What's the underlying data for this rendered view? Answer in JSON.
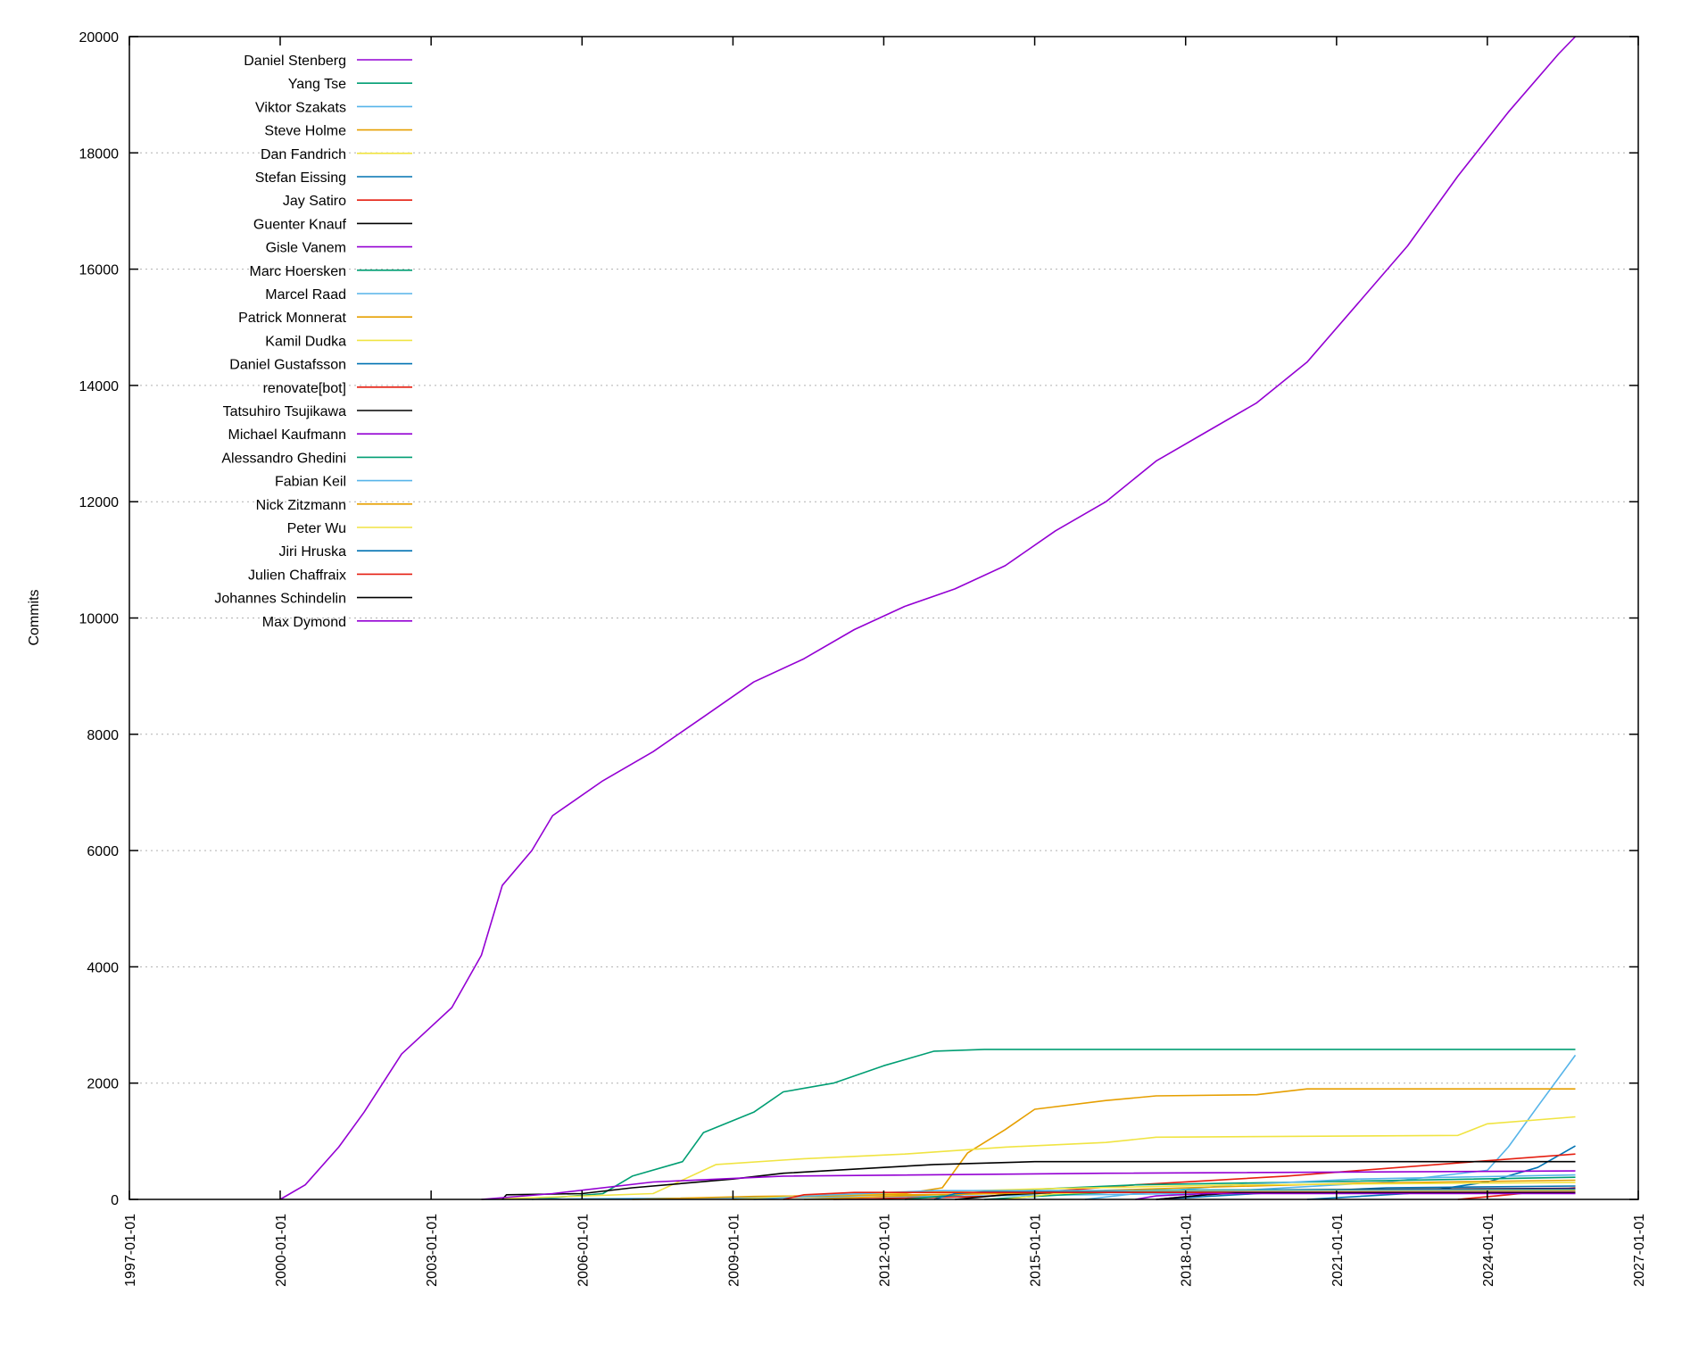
{
  "chart_data": {
    "type": "line",
    "title": "",
    "xlabel": "",
    "ylabel": "Commits",
    "x_scale": "date",
    "xlim": [
      "1997-01-01",
      "2027-01-01"
    ],
    "ylim": [
      0,
      20000
    ],
    "x_ticks": [
      "1997-01-01",
      "2000-01-01",
      "2003-01-01",
      "2006-01-01",
      "2009-01-01",
      "2012-01-01",
      "2015-01-01",
      "2018-01-01",
      "2021-01-01",
      "2024-01-01",
      "2027-01-01"
    ],
    "y_ticks": [
      0,
      2000,
      4000,
      6000,
      8000,
      10000,
      12000,
      14000,
      16000,
      18000,
      20000
    ],
    "grid": "horizontal-dotted",
    "legend_position": "top-left",
    "series": [
      {
        "name": "Daniel Stenberg",
        "color": "#9400D3",
        "points": [
          [
            "2000-01-01",
            0
          ],
          [
            "2000-07-01",
            250
          ],
          [
            "2001-03-01",
            900
          ],
          [
            "2001-09-01",
            1500
          ],
          [
            "2002-06-01",
            2500
          ],
          [
            "2003-06-01",
            3300
          ],
          [
            "2004-01-01",
            4200
          ],
          [
            "2004-06-01",
            5400
          ],
          [
            "2005-01-01",
            6000
          ],
          [
            "2005-06-01",
            6600
          ],
          [
            "2006-06-01",
            7200
          ],
          [
            "2007-06-01",
            7700
          ],
          [
            "2008-06-01",
            8300
          ],
          [
            "2009-06-01",
            8900
          ],
          [
            "2010-06-01",
            9300
          ],
          [
            "2011-06-01",
            9800
          ],
          [
            "2012-06-01",
            10200
          ],
          [
            "2013-06-01",
            10500
          ],
          [
            "2014-06-01",
            10900
          ],
          [
            "2015-06-01",
            11500
          ],
          [
            "2016-06-01",
            12000
          ],
          [
            "2017-06-01",
            12700
          ],
          [
            "2018-06-01",
            13200
          ],
          [
            "2019-06-01",
            13700
          ],
          [
            "2020-06-01",
            14400
          ],
          [
            "2021-06-01",
            15400
          ],
          [
            "2022-06-01",
            16400
          ],
          [
            "2023-06-01",
            17600
          ],
          [
            "2024-06-01",
            18700
          ],
          [
            "2025-06-01",
            19700
          ],
          [
            "2025-10-01",
            20000
          ]
        ]
      },
      {
        "name": "Yang Tse",
        "color": "#009E73",
        "points": [
          [
            "2005-01-01",
            0
          ],
          [
            "2006-06-01",
            100
          ],
          [
            "2007-01-01",
            400
          ],
          [
            "2008-01-01",
            650
          ],
          [
            "2008-06-01",
            1150
          ],
          [
            "2009-06-01",
            1500
          ],
          [
            "2010-01-01",
            1850
          ],
          [
            "2011-01-01",
            2000
          ],
          [
            "2012-01-01",
            2300
          ],
          [
            "2013-01-01",
            2550
          ],
          [
            "2014-01-01",
            2580
          ],
          [
            "2025-10-01",
            2580
          ]
        ]
      },
      {
        "name": "Viktor Szakats",
        "color": "#56B4E9",
        "points": [
          [
            "2004-01-01",
            0
          ],
          [
            "2013-01-01",
            50
          ],
          [
            "2018-01-01",
            100
          ],
          [
            "2022-01-01",
            300
          ],
          [
            "2024-01-01",
            500
          ],
          [
            "2024-06-01",
            900
          ],
          [
            "2025-01-01",
            1600
          ],
          [
            "2025-10-01",
            2480
          ]
        ]
      },
      {
        "name": "Steve Holme",
        "color": "#E69F00",
        "points": [
          [
            "2009-01-01",
            0
          ],
          [
            "2012-06-01",
            100
          ],
          [
            "2013-03-01",
            200
          ],
          [
            "2013-09-01",
            800
          ],
          [
            "2014-06-01",
            1200
          ],
          [
            "2015-01-01",
            1550
          ],
          [
            "2016-06-01",
            1700
          ],
          [
            "2017-06-01",
            1780
          ],
          [
            "2019-06-01",
            1800
          ],
          [
            "2020-06-01",
            1900
          ],
          [
            "2025-10-01",
            1900
          ]
        ]
      },
      {
        "name": "Dan Fandrich",
        "color": "#F0E442",
        "points": [
          [
            "2004-01-01",
            0
          ],
          [
            "2007-06-01",
            100
          ],
          [
            "2008-09-01",
            600
          ],
          [
            "2010-06-01",
            700
          ],
          [
            "2012-06-01",
            780
          ],
          [
            "2014-06-01",
            900
          ],
          [
            "2016-06-01",
            980
          ],
          [
            "2017-06-01",
            1070
          ],
          [
            "2023-06-01",
            1100
          ],
          [
            "2024-01-01",
            1300
          ],
          [
            "2025-10-01",
            1420
          ]
        ]
      },
      {
        "name": "Stefan Eissing",
        "color": "#0072B2",
        "points": [
          [
            "2020-06-01",
            0
          ],
          [
            "2022-06-01",
            100
          ],
          [
            "2024-01-01",
            300
          ],
          [
            "2025-01-01",
            550
          ],
          [
            "2025-10-01",
            920
          ]
        ]
      },
      {
        "name": "Jay Satiro",
        "color": "#E51E10",
        "points": [
          [
            "2011-01-01",
            0
          ],
          [
            "2014-01-01",
            50
          ],
          [
            "2017-01-01",
            250
          ],
          [
            "2020-01-01",
            400
          ],
          [
            "2023-01-01",
            600
          ],
          [
            "2025-10-01",
            780
          ]
        ]
      },
      {
        "name": "Guenter Knauf",
        "color": "#000000",
        "points": [
          [
            "2004-06-01",
            0
          ],
          [
            "2004-07-01",
            80
          ],
          [
            "2006-01-01",
            100
          ],
          [
            "2007-01-01",
            200
          ],
          [
            "2009-01-01",
            350
          ],
          [
            "2010-01-01",
            450
          ],
          [
            "2012-01-01",
            550
          ],
          [
            "2013-01-01",
            600
          ],
          [
            "2015-01-01",
            650
          ],
          [
            "2025-10-01",
            650
          ]
        ]
      },
      {
        "name": "Gisle Vanem",
        "color": "#9400D3",
        "points": [
          [
            "2004-01-01",
            0
          ],
          [
            "2005-06-01",
            100
          ],
          [
            "2007-06-01",
            300
          ],
          [
            "2010-01-01",
            400
          ],
          [
            "2016-06-01",
            450
          ],
          [
            "2025-10-01",
            490
          ]
        ]
      },
      {
        "name": "Marc Hoersken",
        "color": "#009E73",
        "points": [
          [
            "2012-06-01",
            0
          ],
          [
            "2014-06-01",
            150
          ],
          [
            "2017-01-01",
            250
          ],
          [
            "2020-06-01",
            300
          ],
          [
            "2025-10-01",
            380
          ]
        ]
      },
      {
        "name": "Marcel Raad",
        "color": "#56B4E9",
        "points": [
          [
            "2016-01-01",
            0
          ],
          [
            "2017-01-01",
            100
          ],
          [
            "2019-01-01",
            250
          ],
          [
            "2021-06-01",
            350
          ],
          [
            "2025-10-01",
            420
          ]
        ]
      },
      {
        "name": "Patrick Monnerat",
        "color": "#E69F00",
        "points": [
          [
            "2007-01-01",
            0
          ],
          [
            "2009-06-01",
            50
          ],
          [
            "2014-06-01",
            100
          ],
          [
            "2018-01-01",
            200
          ],
          [
            "2021-06-01",
            280
          ],
          [
            "2025-10-01",
            330
          ]
        ]
      },
      {
        "name": "Kamil Dudka",
        "color": "#F0E442",
        "points": [
          [
            "2009-01-01",
            0
          ],
          [
            "2011-01-01",
            80
          ],
          [
            "2015-01-01",
            180
          ],
          [
            "2019-01-01",
            250
          ],
          [
            "2025-10-01",
            290
          ]
        ]
      },
      {
        "name": "Daniel Gustafsson",
        "color": "#0072B2",
        "points": [
          [
            "2017-06-01",
            0
          ],
          [
            "2019-06-01",
            100
          ],
          [
            "2022-01-01",
            200
          ],
          [
            "2025-10-01",
            230
          ]
        ]
      },
      {
        "name": "renovate[bot]",
        "color": "#E51E10",
        "points": [
          [
            "2023-06-01",
            0
          ],
          [
            "2024-06-01",
            80
          ],
          [
            "2025-10-01",
            200
          ]
        ]
      },
      {
        "name": "Tatsuhiro Tsujikawa",
        "color": "#000000",
        "points": [
          [
            "2013-06-01",
            0
          ],
          [
            "2014-06-01",
            80
          ],
          [
            "2016-06-01",
            150
          ],
          [
            "2025-10-01",
            190
          ]
        ]
      },
      {
        "name": "Michael Kaufmann",
        "color": "#9400D3",
        "points": [
          [
            "2017-06-01",
            0
          ],
          [
            "2018-06-01",
            80
          ],
          [
            "2019-06-01",
            160
          ],
          [
            "2025-10-01",
            180
          ]
        ]
      },
      {
        "name": "Alessandro Ghedini",
        "color": "#009E73",
        "points": [
          [
            "2014-01-01",
            0
          ],
          [
            "2016-01-01",
            100
          ],
          [
            "2017-06-01",
            160
          ],
          [
            "2025-10-01",
            170
          ]
        ]
      },
      {
        "name": "Fabian Keil",
        "color": "#56B4E9",
        "points": [
          [
            "2009-06-01",
            0
          ],
          [
            "2011-01-01",
            80
          ],
          [
            "2013-01-01",
            150
          ],
          [
            "2025-10-01",
            160
          ]
        ]
      },
      {
        "name": "Nick Zitzmann",
        "color": "#E69F00",
        "points": [
          [
            "2010-06-01",
            0
          ],
          [
            "2013-01-01",
            80
          ],
          [
            "2016-01-01",
            130
          ],
          [
            "2025-10-01",
            150
          ]
        ]
      },
      {
        "name": "Peter Wu",
        "color": "#F0E442",
        "points": [
          [
            "2014-06-01",
            0
          ],
          [
            "2015-06-01",
            100
          ],
          [
            "2017-01-01",
            140
          ],
          [
            "2025-10-01",
            140
          ]
        ]
      },
      {
        "name": "Jiri Hruska",
        "color": "#0072B2",
        "points": [
          [
            "2013-01-01",
            0
          ],
          [
            "2013-06-01",
            100
          ],
          [
            "2014-01-01",
            130
          ],
          [
            "2025-10-01",
            130
          ]
        ]
      },
      {
        "name": "Julien Chaffraix",
        "color": "#E51E10",
        "points": [
          [
            "2010-01-01",
            0
          ],
          [
            "2010-06-01",
            80
          ],
          [
            "2011-06-01",
            120
          ],
          [
            "2025-10-01",
            120
          ]
        ]
      },
      {
        "name": "Johannes Schindelin",
        "color": "#000000",
        "points": [
          [
            "2017-06-01",
            0
          ],
          [
            "2018-06-01",
            80
          ],
          [
            "2019-01-01",
            110
          ],
          [
            "2025-10-01",
            110
          ]
        ]
      },
      {
        "name": "Max Dymond",
        "color": "#9400D3",
        "points": [
          [
            "2017-01-01",
            0
          ],
          [
            "2017-06-01",
            60
          ],
          [
            "2018-06-01",
            100
          ],
          [
            "2025-10-01",
            100
          ]
        ]
      }
    ]
  }
}
